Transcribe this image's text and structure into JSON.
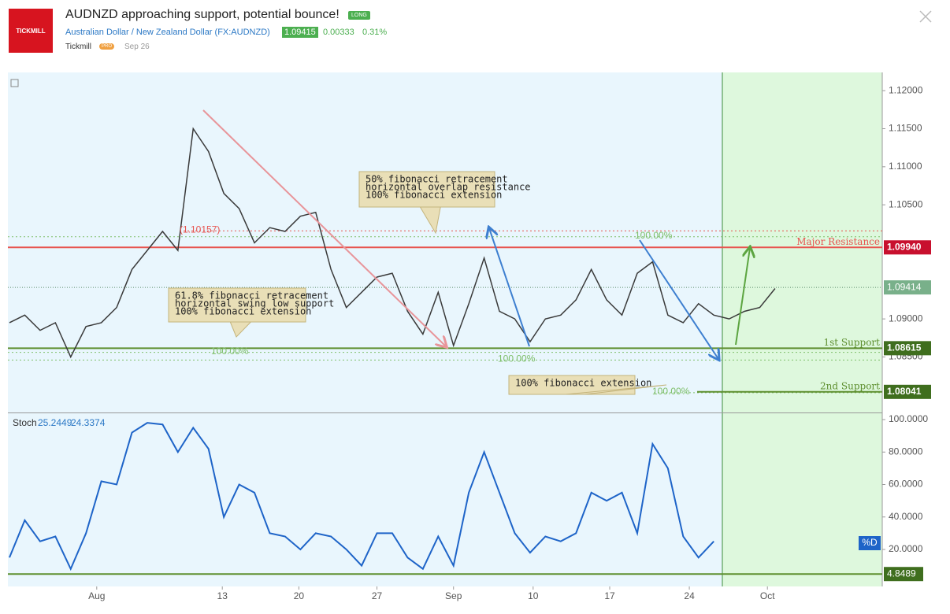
{
  "header": {
    "logo": "TICKMILL",
    "title": "AUDNZD approaching support, potential bounce!",
    "badge": "LONG",
    "symbol": "Australian Dollar / New Zealand Dollar (FX:AUDNZD)",
    "price": "1.09415",
    "change": "0.00333",
    "change_pct": "0.31%",
    "author": "Tickmill",
    "author_badge": "PRO",
    "date": "Sep 26"
  },
  "chart_data": [
    {
      "type": "line",
      "color": "#3a3a3a",
      "values": [
        1.0895,
        1.0905,
        1.0885,
        1.0895,
        1.085,
        1.089,
        1.0895,
        1.0915,
        1.0965,
        1.099,
        1.1015,
        1.099,
        1.115,
        1.112,
        1.1065,
        1.1045,
        1.1,
        1.102,
        1.1015,
        1.1035,
        1.104,
        1.0965,
        1.0915,
        1.0935,
        1.0955,
        1.096,
        1.091,
        1.088,
        1.0935,
        1.0865,
        1.092,
        1.098,
        1.091,
        1.09,
        1.087,
        1.09,
        1.0905,
        1.0925,
        1.0965,
        1.0925,
        1.0905,
        1.096,
        1.0975,
        1.0905,
        1.0895,
        1.092,
        1.0905,
        1.09,
        1.091,
        1.0915,
        1.094
      ],
      "xlim": [
        0,
        57
      ],
      "ylim": [
        1.0777,
        1.1224
      ],
      "yticks": [
        {
          "value": 1.085,
          "label": "1.08500"
        },
        {
          "value": 1.09,
          "label": "1.09000"
        },
        {
          "value": 1.105,
          "label": "1.10500"
        },
        {
          "value": 1.11,
          "label": "1.11000"
        },
        {
          "value": 1.115,
          "label": "1.11500"
        },
        {
          "value": 1.12,
          "label": "1.12000"
        }
      ],
      "levels": [
        {
          "name": "Major Resistance",
          "value": 1.0994,
          "value_label": "1.09940",
          "color": "#e8534f"
        },
        {
          "name": "1st Support",
          "value": 1.08615,
          "value_label": "1.08615",
          "color": "#5e8f2f"
        },
        {
          "name": "2nd Support",
          "value": 1.08041,
          "value_label": "1.08041",
          "color": "#5e8f2f"
        }
      ],
      "last_price": {
        "value": 1.09414,
        "value_label": "1.09414",
        "color": "#79b08a"
      },
      "fib_levels": [
        {
          "value": 1.10157,
          "label": "(1.10157)",
          "color": "#e8534f"
        },
        {
          "value": 1.1008,
          "label": "100.00%",
          "color": "#7fbf6a"
        },
        {
          "value": 1.0856,
          "label": "100.00%",
          "color": "#7fbf6a"
        },
        {
          "value": 1.0846,
          "label": "100.00%",
          "color": "#7fbf6a"
        },
        {
          "value": 1.0803,
          "label": "100.00%",
          "color": "#7fbf6a"
        }
      ],
      "annotations": [
        [
          "50% fibonacci retracement",
          "horizontal overlap resistance",
          "100% fibonacci extension"
        ],
        [
          "61.8% fibonacci retracement",
          "horizontal swing low support",
          "100% fibonacci extension"
        ],
        [
          "100% fibonacci extension"
        ]
      ]
    },
    {
      "type": "line",
      "title": "Stoch",
      "last_values": [
        25.2449,
        24.3374
      ],
      "series": [
        {
          "name": "%D",
          "color": "#1e64c8",
          "values": [
            15,
            38,
            25,
            28,
            8,
            30,
            62,
            60,
            92,
            98,
            97,
            80,
            95,
            82,
            40,
            60,
            55,
            30,
            28,
            20,
            30,
            28,
            20,
            10,
            30,
            30,
            15,
            8,
            28,
            10,
            55,
            80,
            55,
            30,
            18,
            28,
            25,
            30,
            55,
            50,
            55,
            30,
            85,
            70,
            28,
            15,
            25
          ]
        }
      ],
      "level": {
        "value": 4.8489,
        "color": "#5e8f2f"
      },
      "xlim": [
        0,
        57
      ],
      "ylim": [
        -2.8,
        103.9
      ],
      "yticks": [
        {
          "value": 20,
          "label": "20.0000"
        },
        {
          "value": 40,
          "label": "40.0000"
        },
        {
          "value": 60,
          "label": "60.0000"
        },
        {
          "value": 80,
          "label": "80.0000"
        },
        {
          "value": 100,
          "label": "100.0000"
        }
      ],
      "xticks": [
        {
          "value": 5.7,
          "label": "Aug"
        },
        {
          "value": 13.9,
          "label": "13"
        },
        {
          "value": 18.9,
          "label": "20"
        },
        {
          "value": 24,
          "label": "27"
        },
        {
          "value": 29,
          "label": "Sep"
        },
        {
          "value": 34.2,
          "label": "10"
        },
        {
          "value": 39.2,
          "label": "17"
        },
        {
          "value": 44.4,
          "label": "24"
        },
        {
          "value": 49.5,
          "label": "Oct"
        }
      ]
    }
  ]
}
